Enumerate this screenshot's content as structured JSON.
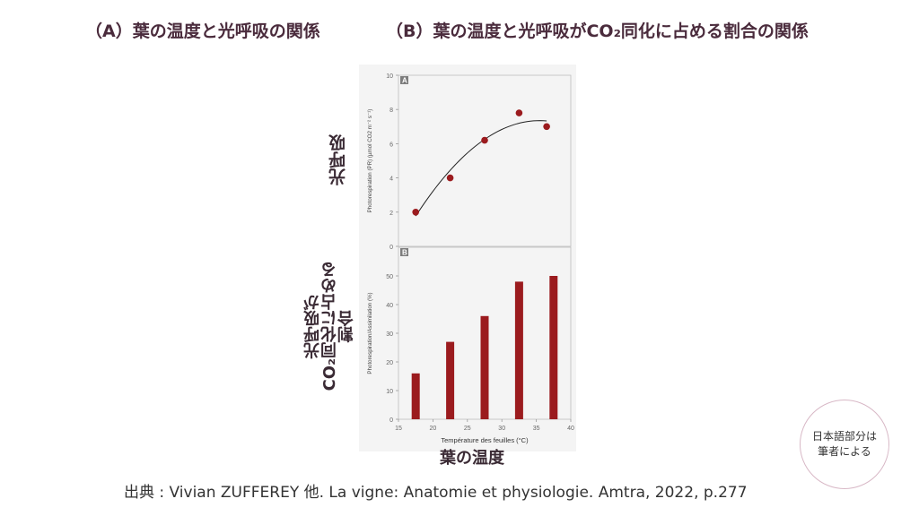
{
  "headings": {
    "a": "（A）葉の温度と光呼吸の関係",
    "b": "（B）葉の温度と光呼吸がCO₂同化に占める割合の関係"
  },
  "labels_jp": {
    "photorespiration": "光呼吸",
    "ratio_line1": "光呼吸が",
    "ratio_line2": "CO₂同化に占める",
    "ratio_line3": "割合",
    "temperature": "葉の温度"
  },
  "note": {
    "line1": "日本語部分は",
    "line2": "筆者による"
  },
  "source": "出典 : Vivian ZUFFEREY 他. La vigne: Anatomie et physiologie. Amtra, 2022, p.277",
  "colors": {
    "marker": "#9b1b1e",
    "bar": "#9b1b1e",
    "grid": "#bdbdbd"
  },
  "chart_data": [
    {
      "type": "scatter",
      "panel": "A",
      "ylabel": "Photorespiration (PR) (µmol CO2 m⁻² s⁻¹)",
      "yticks": [
        "0",
        "2",
        "4",
        "6",
        "8",
        "10"
      ],
      "ylim": [
        0,
        10
      ],
      "xlim": [
        15,
        40
      ],
      "x": [
        17.5,
        22.5,
        27.5,
        32.5,
        36.5
      ],
      "y": [
        2.0,
        4.0,
        6.2,
        7.8,
        7.0
      ],
      "trendline": "quadratic fit"
    },
    {
      "type": "bar",
      "panel": "B",
      "ylabel": "Photorespiration/Assimilation (%)",
      "xlabel": "Température des feuilles (°C)",
      "yticks": [
        "0",
        "10",
        "20",
        "30",
        "40",
        "50"
      ],
      "xticks": [
        "15",
        "20",
        "25",
        "30",
        "35",
        "40"
      ],
      "ylim": [
        0,
        60
      ],
      "xlim": [
        15,
        40
      ],
      "x": [
        17.5,
        22.5,
        27.5,
        32.5,
        37.5
      ],
      "values": [
        16,
        27,
        36,
        48,
        50
      ]
    }
  ]
}
